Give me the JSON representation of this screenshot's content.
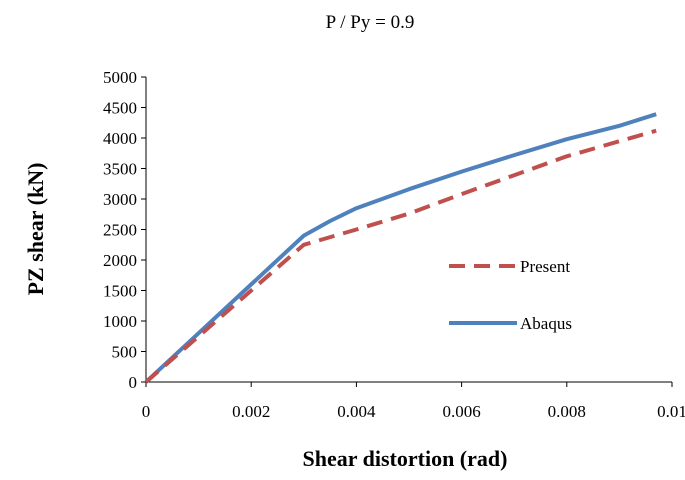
{
  "chart_data": {
    "type": "line",
    "title": "P / Py = 0.9",
    "xlabel": "Shear distortion (rad)",
    "ylabel": "PZ shear (kN)",
    "xlim": [
      0,
      0.01
    ],
    "ylim": [
      0,
      5000
    ],
    "x_ticks": [
      "0",
      "0.002",
      "0.004",
      "0.006",
      "0.008",
      "0.01"
    ],
    "y_ticks": [
      "0",
      "500",
      "1000",
      "1500",
      "2000",
      "2500",
      "3000",
      "3500",
      "4000",
      "4500",
      "5000"
    ],
    "grid": false,
    "legend_position": "right",
    "series": [
      {
        "name": "Present",
        "color": "#C0504D",
        "style": "dashed",
        "x": [
          0,
          0.001,
          0.002,
          0.003,
          0.004,
          0.005,
          0.006,
          0.007,
          0.008,
          0.0097
        ],
        "y": [
          0,
          750,
          1500,
          2250,
          2500,
          2760,
          3080,
          3390,
          3700,
          4120
        ]
      },
      {
        "name": "Abaqus",
        "color": "#4F81BD",
        "style": "solid",
        "x": [
          0,
          0.001,
          0.002,
          0.003,
          0.0035,
          0.004,
          0.005,
          0.006,
          0.007,
          0.008,
          0.009,
          0.0097
        ],
        "y": [
          0,
          800,
          1600,
          2400,
          2640,
          2850,
          3160,
          3450,
          3720,
          3980,
          4200,
          4390
        ]
      }
    ]
  }
}
